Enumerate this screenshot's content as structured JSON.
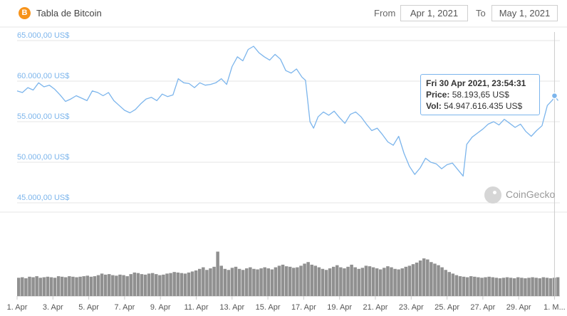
{
  "header": {
    "logo_glyph": "B",
    "title": "Tabla de Bitcoin",
    "from_label": "From",
    "from_value": "Apr 1, 2021",
    "to_label": "To",
    "to_value": "May 1, 2021"
  },
  "tooltip": {
    "date": "Fri 30 Apr 2021, 23:54:31",
    "price_label": "Price:",
    "price_value": "58.193,65 US$",
    "vol_label": "Vol:",
    "vol_value": "54.947.616.435 US$"
  },
  "watermark": "CoinGecko",
  "colors": {
    "line": "#7cb5ec",
    "volume": "#909090",
    "grid": "#e6e6e6",
    "logo": "#f7931a"
  },
  "chart_data": {
    "type": "line",
    "ylim": [
      45000,
      65000
    ],
    "ytick_values": [
      45000,
      50000,
      55000,
      60000,
      65000
    ],
    "yticks": [
      "45.000,00 US$",
      "50.000,00 US$",
      "55.000,00 US$",
      "60.000,00 US$",
      "65.000,00 US$"
    ],
    "xlim": [
      1,
      31.3
    ],
    "xtick_days": [
      1,
      3,
      5,
      7,
      9,
      11,
      13,
      15,
      17,
      19,
      21,
      23,
      25,
      27,
      29,
      31
    ],
    "xticks": [
      "1. Apr",
      "3. Apr",
      "5. Apr",
      "7. Apr",
      "9. Apr",
      "11. Apr",
      "13. Apr",
      "15. Apr",
      "17. Apr",
      "19. Apr",
      "21. Apr",
      "23. Apr",
      "25. Apr",
      "27. Apr",
      "29. Apr",
      "1. M..."
    ],
    "series": [
      {
        "values": [
          [
            1.0,
            58800
          ],
          [
            1.3,
            58600
          ],
          [
            1.6,
            59200
          ],
          [
            1.9,
            58900
          ],
          [
            2.2,
            59800
          ],
          [
            2.5,
            59300
          ],
          [
            2.8,
            59500
          ],
          [
            3.1,
            59000
          ],
          [
            3.4,
            58300
          ],
          [
            3.7,
            57500
          ],
          [
            4.0,
            57800
          ],
          [
            4.3,
            58200
          ],
          [
            4.6,
            57900
          ],
          [
            4.9,
            57600
          ],
          [
            5.2,
            58800
          ],
          [
            5.5,
            58600
          ],
          [
            5.8,
            58200
          ],
          [
            6.1,
            58600
          ],
          [
            6.4,
            57600
          ],
          [
            6.7,
            57000
          ],
          [
            7.0,
            56400
          ],
          [
            7.3,
            56100
          ],
          [
            7.6,
            56500
          ],
          [
            7.9,
            57200
          ],
          [
            8.2,
            57800
          ],
          [
            8.5,
            58000
          ],
          [
            8.8,
            57600
          ],
          [
            9.1,
            58400
          ],
          [
            9.4,
            58100
          ],
          [
            9.7,
            58300
          ],
          [
            10.0,
            60300
          ],
          [
            10.3,
            59800
          ],
          [
            10.6,
            59700
          ],
          [
            10.9,
            59200
          ],
          [
            11.2,
            59800
          ],
          [
            11.5,
            59500
          ],
          [
            11.8,
            59600
          ],
          [
            12.1,
            59800
          ],
          [
            12.4,
            60300
          ],
          [
            12.7,
            59600
          ],
          [
            13.0,
            61800
          ],
          [
            13.3,
            63000
          ],
          [
            13.6,
            62500
          ],
          [
            13.9,
            63900
          ],
          [
            14.2,
            64300
          ],
          [
            14.5,
            63500
          ],
          [
            14.8,
            63000
          ],
          [
            15.1,
            62600
          ],
          [
            15.4,
            63300
          ],
          [
            15.7,
            62700
          ],
          [
            16.0,
            61300
          ],
          [
            16.3,
            61000
          ],
          [
            16.6,
            61500
          ],
          [
            16.9,
            60500
          ],
          [
            17.1,
            60100
          ],
          [
            17.35,
            55000
          ],
          [
            17.55,
            54200
          ],
          [
            17.8,
            55600
          ],
          [
            18.1,
            56200
          ],
          [
            18.4,
            55800
          ],
          [
            18.7,
            56300
          ],
          [
            19.0,
            55500
          ],
          [
            19.3,
            54800
          ],
          [
            19.6,
            55900
          ],
          [
            19.9,
            56200
          ],
          [
            20.2,
            55600
          ],
          [
            20.5,
            54700
          ],
          [
            20.8,
            53900
          ],
          [
            21.1,
            54200
          ],
          [
            21.4,
            53400
          ],
          [
            21.7,
            52500
          ],
          [
            22.0,
            52100
          ],
          [
            22.3,
            53200
          ],
          [
            22.6,
            51100
          ],
          [
            22.9,
            49500
          ],
          [
            23.2,
            48500
          ],
          [
            23.5,
            49300
          ],
          [
            23.8,
            50500
          ],
          [
            24.1,
            50000
          ],
          [
            24.4,
            49800
          ],
          [
            24.7,
            49200
          ],
          [
            25.0,
            49700
          ],
          [
            25.3,
            49900
          ],
          [
            25.6,
            49100
          ],
          [
            25.9,
            48300
          ],
          [
            26.1,
            52200
          ],
          [
            26.4,
            53100
          ],
          [
            26.7,
            53600
          ],
          [
            27.0,
            54100
          ],
          [
            27.3,
            54700
          ],
          [
            27.6,
            55000
          ],
          [
            27.9,
            54600
          ],
          [
            28.2,
            55300
          ],
          [
            28.5,
            54800
          ],
          [
            28.8,
            54300
          ],
          [
            29.1,
            54700
          ],
          [
            29.4,
            53800
          ],
          [
            29.7,
            53200
          ],
          [
            30.0,
            53900
          ],
          [
            30.3,
            54500
          ],
          [
            30.6,
            57000
          ],
          [
            30.9,
            57700
          ],
          [
            31.0,
            58194
          ],
          [
            31.2,
            57600
          ]
        ]
      }
    ],
    "highlight": {
      "x": 31.0,
      "y": 58193.65
    },
    "volume": [
      0.35,
      0.36,
      0.34,
      0.37,
      0.36,
      0.38,
      0.35,
      0.36,
      0.37,
      0.36,
      0.35,
      0.38,
      0.37,
      0.36,
      0.38,
      0.37,
      0.36,
      0.37,
      0.38,
      0.39,
      0.37,
      0.38,
      0.4,
      0.43,
      0.41,
      0.42,
      0.4,
      0.39,
      0.41,
      0.4,
      0.38,
      0.42,
      0.45,
      0.44,
      0.42,
      0.41,
      0.43,
      0.44,
      0.42,
      0.4,
      0.41,
      0.43,
      0.44,
      0.46,
      0.45,
      0.44,
      0.43,
      0.45,
      0.47,
      0.49,
      0.52,
      0.55,
      0.5,
      0.53,
      0.56,
      0.85,
      0.58,
      0.52,
      0.5,
      0.54,
      0.56,
      0.52,
      0.5,
      0.53,
      0.55,
      0.52,
      0.51,
      0.53,
      0.55,
      0.53,
      0.51,
      0.55,
      0.58,
      0.6,
      0.57,
      0.56,
      0.54,
      0.55,
      0.58,
      0.62,
      0.65,
      0.6,
      0.58,
      0.55,
      0.52,
      0.5,
      0.53,
      0.56,
      0.59,
      0.55,
      0.53,
      0.56,
      0.6,
      0.55,
      0.52,
      0.54,
      0.58,
      0.57,
      0.55,
      0.53,
      0.51,
      0.54,
      0.57,
      0.55,
      0.52,
      0.51,
      0.53,
      0.56,
      0.58,
      0.61,
      0.64,
      0.68,
      0.72,
      0.7,
      0.65,
      0.62,
      0.59,
      0.55,
      0.5,
      0.46,
      0.43,
      0.4,
      0.38,
      0.37,
      0.36,
      0.38,
      0.37,
      0.36,
      0.35,
      0.36,
      0.37,
      0.36,
      0.35,
      0.34,
      0.35,
      0.36,
      0.35,
      0.34,
      0.36,
      0.35,
      0.34,
      0.35,
      0.36,
      0.35,
      0.34,
      0.36,
      0.35,
      0.34,
      0.35,
      0.36
    ]
  }
}
